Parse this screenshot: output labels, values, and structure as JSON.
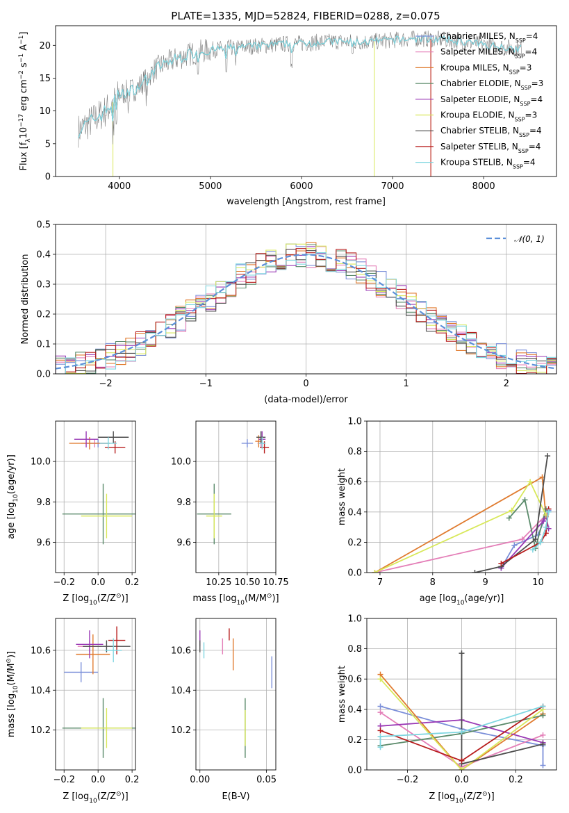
{
  "title": "PLATE=1335, MJD=52824, FIBERID=0288, z=0.075",
  "colors": {
    "Chabrier MILES": "#7b8fd9",
    "Salpeter MILES": "#e47fb8",
    "Kroupa MILES": "#e07b2f",
    "Chabrier ELODIE": "#5a8a6a",
    "Salpeter ELODIE": "#9a39b5",
    "Kroupa ELODIE": "#d8e85a",
    "Chabrier STELIB": "#4d4d4d",
    "Salpeter STELIB": "#b71c1c",
    "Kroupa STELIB": "#7fd6e0",
    "data": "#808080",
    "gauss": "#5b8fd9"
  },
  "chart_data": [
    {
      "type": "line",
      "id": "spectrum",
      "xlabel": "wavelength [Angstrom, rest frame]",
      "ylabel_parts": [
        "Flux [f",
        "λ",
        "10",
        "−17",
        " erg cm",
        "−2",
        " s",
        "−1",
        " A",
        "−1",
        "]"
      ],
      "xlim": [
        3300,
        8800
      ],
      "ylim": [
        0,
        23
      ],
      "xticks": [
        4000,
        5000,
        6000,
        7000,
        8000
      ],
      "yticks": [
        0,
        5,
        10,
        15,
        20
      ],
      "legend": [
        {
          "name": "Chabrier MILES",
          "n": "4"
        },
        {
          "name": "Salpeter MILES",
          "n": "4"
        },
        {
          "name": "Kroupa MILES",
          "n": "3"
        },
        {
          "name": "Chabrier ELODIE",
          "n": "3"
        },
        {
          "name": "Salpeter ELODIE",
          "n": "4"
        },
        {
          "name": "Kroupa ELODIE",
          "n": "3"
        },
        {
          "name": "Chabrier STELIB",
          "n": "4"
        },
        {
          "name": "Salpeter STELIB",
          "n": "4"
        },
        {
          "name": "Kroupa STELIB",
          "n": "4"
        }
      ],
      "legend_sub": "SSP",
      "legend_prefix": "N",
      "legend_placement": "upper-right",
      "continuum": [
        [
          3550,
          7
        ],
        [
          3700,
          8.5
        ],
        [
          3850,
          10
        ],
        [
          4000,
          12.5
        ],
        [
          4200,
          13.5
        ],
        [
          4400,
          16.5
        ],
        [
          4600,
          17.8
        ],
        [
          4800,
          18.8
        ],
        [
          5000,
          19.3
        ],
        [
          5200,
          19.6
        ],
        [
          5400,
          19.8
        ],
        [
          5600,
          20
        ],
        [
          5800,
          20.2
        ],
        [
          6000,
          20.3
        ],
        [
          6200,
          20.5
        ],
        [
          6400,
          20.6
        ],
        [
          6600,
          20.5
        ],
        [
          6800,
          20.6
        ],
        [
          7000,
          20.8
        ],
        [
          7200,
          21
        ],
        [
          7400,
          21
        ],
        [
          7600,
          20.8
        ],
        [
          7800,
          20.5
        ],
        [
          8000,
          20.1
        ],
        [
          8200,
          19.8
        ],
        [
          8400,
          19.5
        ]
      ],
      "truncated_models": {
        "Kroupa ELODIE": [
          3930,
          6800
        ],
        "Salpeter STELIB": [
          3550,
          7420
        ],
        "Kroupa MILES": [
          3550,
          7420
        ]
      }
    },
    {
      "type": "histogram",
      "id": "residuals",
      "xlabel": "(data-model)/error",
      "ylabel": "Normed distribution",
      "xlim": [
        -2.5,
        2.5
      ],
      "ylim": [
        0,
        0.5
      ],
      "xticks": [
        -2,
        -1,
        0,
        1,
        2
      ],
      "yticks": [
        0.0,
        0.1,
        0.2,
        0.3,
        0.4,
        0.5
      ],
      "xticklabels": [
        "−2",
        "−1",
        "0",
        "1",
        "2"
      ],
      "yticklabels": [
        "0.0",
        "0.1",
        "0.2",
        "0.3",
        "0.4",
        "0.5"
      ],
      "legend": "𝒩(0, 1)",
      "legend_placement": "upper-right",
      "grid": true
    },
    {
      "type": "errorbar",
      "id": "age-vs-Z",
      "xlabel_parts": [
        "Z [log",
        "10",
        "(Z/Z",
        "⊙",
        ")]"
      ],
      "ylabel_parts": [
        "age  [log",
        "10",
        "(age/yr)]"
      ],
      "xlim": [
        -0.25,
        0.22
      ],
      "ylim": [
        9.45,
        10.2
      ],
      "xticks": [
        -0.2,
        0.0,
        0.2
      ],
      "xticklabels": [
        "−0.2",
        "0.0",
        "0.2"
      ],
      "yticks": [
        9.6,
        9.8,
        10.0
      ],
      "yticklabels": [
        "9.6",
        "9.8",
        "10.0"
      ],
      "points": [
        {
          "m": "Chabrier MILES",
          "x": 0.0,
          "y": 10.09,
          "xe": 0.07,
          "ye": 0.02
        },
        {
          "m": "Salpeter MILES",
          "x": -0.02,
          "y": 10.09,
          "xe": 0.08,
          "ye": 0.02
        },
        {
          "m": "Kroupa MILES",
          "x": -0.05,
          "y": 10.09,
          "xe": 0.12,
          "ye": 0.03
        },
        {
          "m": "Chabrier ELODIE",
          "x": 0.03,
          "y": 9.74,
          "xe": 0.24,
          "ye": 0.15
        },
        {
          "m": "Salpeter ELODIE",
          "x": -0.07,
          "y": 10.11,
          "xe": 0.07,
          "ye": 0.04
        },
        {
          "m": "Kroupa ELODIE",
          "x": 0.05,
          "y": 9.73,
          "xe": 0.15,
          "ye": 0.11
        },
        {
          "m": "Chabrier STELIB",
          "x": 0.09,
          "y": 10.12,
          "xe": 0.09,
          "ye": 0.03
        },
        {
          "m": "Salpeter STELIB",
          "x": 0.1,
          "y": 10.07,
          "xe": 0.06,
          "ye": 0.03
        },
        {
          "m": "Kroupa STELIB",
          "x": 0.06,
          "y": 10.09,
          "xe": 0.05,
          "ye": 0.03
        }
      ]
    },
    {
      "type": "errorbar",
      "id": "age-vs-mass",
      "xlabel_parts": [
        "mass [log",
        "10",
        "(M/M",
        "⊙",
        ")]"
      ],
      "xlim": [
        10.05,
        10.75
      ],
      "ylim": [
        9.45,
        10.2
      ],
      "xticks": [
        10.25,
        10.5,
        10.75
      ],
      "xticklabels": [
        "10.25",
        "10.50",
        "10.75"
      ],
      "yticks": [
        9.6,
        9.8,
        10.0
      ],
      "yticklabels": [
        "9.6",
        "9.8",
        "10.0"
      ],
      "points": [
        {
          "m": "Chabrier MILES",
          "x": 10.5,
          "y": 10.09,
          "xe": 0.05,
          "ye": 0.02
        },
        {
          "m": "Salpeter MILES",
          "x": 10.62,
          "y": 10.09,
          "xe": 0.03,
          "ye": 0.02
        },
        {
          "m": "Kroupa MILES",
          "x": 10.6,
          "y": 10.1,
          "xe": 0.03,
          "ye": 0.03
        },
        {
          "m": "Chabrier ELODIE",
          "x": 10.21,
          "y": 9.74,
          "xe": 0.15,
          "ye": 0.15
        },
        {
          "m": "Salpeter ELODIE",
          "x": 10.63,
          "y": 10.11,
          "xe": 0.03,
          "ye": 0.04
        },
        {
          "m": "Kroupa ELODIE",
          "x": 10.21,
          "y": 9.73,
          "xe": 0.07,
          "ye": 0.11
        },
        {
          "m": "Chabrier STELIB",
          "x": 10.62,
          "y": 10.12,
          "xe": 0.04,
          "ye": 0.03
        },
        {
          "m": "Salpeter STELIB",
          "x": 10.65,
          "y": 10.07,
          "xe": 0.04,
          "ye": 0.03
        },
        {
          "m": "Kroupa STELIB",
          "x": 10.63,
          "y": 10.09,
          "xe": 0.03,
          "ye": 0.03
        }
      ]
    },
    {
      "type": "line",
      "id": "massweight-vs-age",
      "xlabel_parts": [
        "age  [log",
        "10",
        "(age/yr)]"
      ],
      "ylabel": "mass weight",
      "xlim": [
        6.75,
        10.35
      ],
      "ylim": [
        0,
        1
      ],
      "xticks": [
        7,
        8,
        9,
        10
      ],
      "xticklabels": [
        "7",
        "8",
        "9",
        "10"
      ],
      "yticks": [
        0,
        0.2,
        0.4,
        0.6,
        0.8,
        1.0
      ],
      "yticklabels": [
        "0.0",
        "0.2",
        "0.4",
        "0.6",
        "0.8",
        "1.0"
      ],
      "series": [
        {
          "m": "Chabrier MILES",
          "x": [
            9.3,
            9.55,
            10.0,
            10.2
          ],
          "y": [
            0.03,
            0.18,
            0.25,
            0.41
          ]
        },
        {
          "m": "Salpeter MILES",
          "x": [
            6.9,
            9.7,
            10.15,
            10.2
          ],
          "y": [
            0.0,
            0.22,
            0.38,
            0.4
          ]
        },
        {
          "m": "Kroupa MILES",
          "x": [
            6.9,
            10.08,
            10.15
          ],
          "y": [
            0.0,
            0.63,
            0.37
          ]
        },
        {
          "m": "Chabrier ELODIE",
          "x": [
            9.45,
            9.75,
            9.95,
            10.15
          ],
          "y": [
            0.36,
            0.48,
            0.16,
            0.42
          ]
        },
        {
          "m": "Salpeter ELODIE",
          "x": [
            9.3,
            10.1,
            10.15,
            10.2
          ],
          "y": [
            0.03,
            0.34,
            0.38,
            0.29
          ]
        },
        {
          "m": "Kroupa ELODIE",
          "x": [
            6.9,
            9.5,
            9.85,
            10.15
          ],
          "y": [
            0.0,
            0.41,
            0.6,
            0.38
          ]
        },
        {
          "m": "Chabrier STELIB",
          "x": [
            8.8,
            9.3,
            9.95,
            10.18
          ],
          "y": [
            0.0,
            0.04,
            0.22,
            0.77
          ]
        },
        {
          "m": "Salpeter STELIB",
          "x": [
            9.3,
            10.05,
            10.15,
            10.2
          ],
          "y": [
            0.06,
            0.2,
            0.26,
            0.42
          ]
        },
        {
          "m": "Kroupa STELIB",
          "x": [
            9.9,
            10.05,
            10.15,
            10.2
          ],
          "y": [
            0.15,
            0.2,
            0.3,
            0.4
          ]
        }
      ]
    },
    {
      "type": "errorbar",
      "id": "mass-vs-Z",
      "xlabel_parts": [
        "Z [log",
        "10",
        "(Z/Z",
        "⊙",
        ")]"
      ],
      "ylabel_parts": [
        "mass [log",
        "10",
        "(M/M",
        "⊙",
        ")]"
      ],
      "xlim": [
        -0.25,
        0.22
      ],
      "ylim": [
        10.0,
        10.76
      ],
      "xticks": [
        -0.2,
        0.0,
        0.2
      ],
      "xticklabels": [
        "−0.2",
        "0.0",
        "0.2"
      ],
      "yticks": [
        10.2,
        10.4,
        10.6
      ],
      "yticklabels": [
        "10.2",
        "10.4",
        "10.6"
      ],
      "points": [
        {
          "m": "Chabrier MILES",
          "x": -0.1,
          "y": 10.49,
          "xe": 0.1,
          "ye": 0.05
        },
        {
          "m": "Salpeter MILES",
          "x": -0.05,
          "y": 10.62,
          "xe": 0.07,
          "ye": 0.03
        },
        {
          "m": "Kroupa MILES",
          "x": -0.03,
          "y": 10.58,
          "xe": 0.1,
          "ye": 0.1
        },
        {
          "m": "Chabrier ELODIE",
          "x": 0.03,
          "y": 10.21,
          "xe": 0.24,
          "ye": 0.15
        },
        {
          "m": "Salpeter ELODIE",
          "x": -0.05,
          "y": 10.63,
          "xe": 0.08,
          "ye": 0.07
        },
        {
          "m": "Kroupa ELODIE",
          "x": 0.05,
          "y": 10.21,
          "xe": 0.15,
          "ye": 0.1
        },
        {
          "m": "Chabrier STELIB",
          "x": 0.05,
          "y": 10.62,
          "xe": 0.14,
          "ye": 0.03
        },
        {
          "m": "Salpeter STELIB",
          "x": 0.11,
          "y": 10.65,
          "xe": 0.05,
          "ye": 0.07
        },
        {
          "m": "Kroupa STELIB",
          "x": 0.09,
          "y": 10.6,
          "xe": 0.05,
          "ye": 0.06
        }
      ]
    },
    {
      "type": "errorbar",
      "id": "mass-vs-ebv",
      "xlabel": "E(B-V)",
      "xlim": [
        -0.003,
        0.057
      ],
      "ylim": [
        10.0,
        10.76
      ],
      "xticks": [
        0.0,
        0.05
      ],
      "xticklabels": [
        "0.00",
        "0.05"
      ],
      "yticks": [
        10.2,
        10.4,
        10.6
      ],
      "yticklabels": [
        "10.2",
        "10.4",
        "10.6"
      ],
      "points": [
        {
          "m": "Chabrier MILES",
          "x": 0.054,
          "y": 10.49,
          "ye": 0.08
        },
        {
          "m": "Salpeter MILES",
          "x": 0.017,
          "y": 10.62,
          "ye": 0.04
        },
        {
          "m": "Kroupa MILES",
          "x": 0.025,
          "y": 10.58,
          "ye": 0.08
        },
        {
          "m": "Chabrier ELODIE",
          "x": 0.034,
          "y": 10.21,
          "ye": 0.15
        },
        {
          "m": "Salpeter ELODIE",
          "x": 0.0,
          "y": 10.66,
          "ye": 0.04
        },
        {
          "m": "Kroupa ELODIE",
          "x": 0.034,
          "y": 10.21,
          "ye": 0.09
        },
        {
          "m": "Chabrier STELIB",
          "x": 0.0,
          "y": 10.62,
          "ye": 0.03
        },
        {
          "m": "Salpeter STELIB",
          "x": 0.022,
          "y": 10.68,
          "ye": 0.03
        },
        {
          "m": "Kroupa STELIB",
          "x": 0.003,
          "y": 10.6,
          "ye": 0.04
        }
      ]
    },
    {
      "type": "line",
      "id": "massweight-vs-Z",
      "xlabel_parts": [
        "Z [log",
        "10",
        "(Z/Z",
        "⊙",
        ")]"
      ],
      "ylabel": "mass weight",
      "xlim": [
        -0.35,
        0.35
      ],
      "ylim": [
        0,
        1
      ],
      "xticks": [
        -0.2,
        0.0,
        0.2
      ],
      "xticklabels": [
        "−0.2",
        "0.0",
        "0.2"
      ],
      "yticks": [
        0,
        0.2,
        0.4,
        0.6,
        0.8,
        1.0
      ],
      "yticklabels": [
        "0.0",
        "0.2",
        "0.4",
        "0.6",
        "0.8",
        "1.0"
      ],
      "series": [
        {
          "m": "Chabrier MILES",
          "x": [
            -0.3,
            0.0,
            0.3,
            0.3
          ],
          "y": [
            0.42,
            0.27,
            0.16,
            0.03
          ]
        },
        {
          "m": "Salpeter MILES",
          "x": [
            -0.3,
            0.0,
            0.3
          ],
          "y": [
            0.38,
            0.02,
            0.23
          ]
        },
        {
          "m": "Kroupa MILES",
          "x": [
            -0.3,
            0.0,
            0.3
          ],
          "y": [
            0.63,
            0.0,
            0.37
          ]
        },
        {
          "m": "Chabrier ELODIE",
          "x": [
            -0.3,
            0.0,
            0.3
          ],
          "y": [
            0.16,
            0.24,
            0.36
          ]
        },
        {
          "m": "Salpeter ELODIE",
          "x": [
            -0.3,
            0.0,
            0.3
          ],
          "y": [
            0.29,
            0.33,
            0.18
          ]
        },
        {
          "m": "Kroupa ELODIE",
          "x": [
            -0.3,
            0.0,
            0.3
          ],
          "y": [
            0.6,
            0.0,
            0.4
          ]
        },
        {
          "m": "Chabrier STELIB",
          "x": [
            0.0,
            0.0,
            0.3
          ],
          "y": [
            0.77,
            0.04,
            0.17
          ]
        },
        {
          "m": "Salpeter STELIB",
          "x": [
            -0.3,
            0.0,
            0.3
          ],
          "y": [
            0.26,
            0.06,
            0.42
          ]
        },
        {
          "m": "Kroupa STELIB",
          "x": [
            -0.3,
            -0.3,
            0.0,
            0.3
          ],
          "y": [
            0.15,
            0.22,
            0.25,
            0.42
          ]
        }
      ]
    }
  ]
}
